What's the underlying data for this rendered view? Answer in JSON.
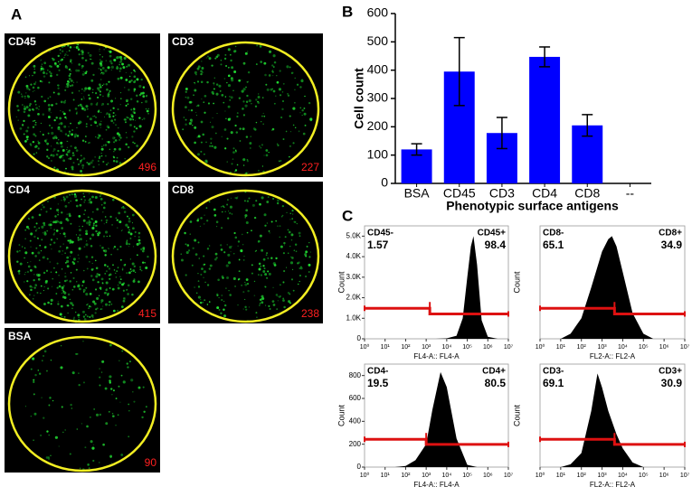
{
  "panel_labels": [
    "A",
    "B",
    "C"
  ],
  "images": [
    {
      "label": "CD45",
      "count": 496
    },
    {
      "label": "CD3",
      "count": 227
    },
    {
      "label": "CD4",
      "count": 415
    },
    {
      "label": "CD8",
      "count": 238
    },
    {
      "label": "BSA",
      "count": 90
    }
  ],
  "chart_data": [
    {
      "type": "bar",
      "ylabel": "Cell count",
      "xlabel": "Phenotypic surface antigens",
      "categories": [
        "BSA",
        "CD45",
        "CD3",
        "CD4",
        "CD8",
        "--"
      ],
      "values": [
        120,
        395,
        178,
        447,
        205,
        null
      ],
      "errors": [
        20,
        120,
        55,
        35,
        38,
        null
      ],
      "color": "#0000ff",
      "ylim": [
        0,
        600
      ],
      "yticks": [
        0,
        100,
        200,
        300,
        400,
        500,
        600
      ]
    },
    {
      "type": "area",
      "xlabel": "FL4-A:: FL4-A",
      "ylabel": "Count",
      "log_x": true,
      "color": "#000000",
      "xlim": [
        1,
        10000000
      ],
      "xticks": [
        {
          "value": 1,
          "label": "10⁰"
        },
        {
          "value": 10,
          "label": "10¹"
        },
        {
          "value": 100,
          "label": "10²"
        },
        {
          "value": 1000,
          "label": "10³"
        },
        {
          "value": 10000,
          "label": "10⁴"
        },
        {
          "value": 100000,
          "label": "10⁵"
        },
        {
          "value": 1000000,
          "label": "10⁶"
        },
        {
          "value": 10000000,
          "label": "10⁷"
        }
      ],
      "ylim": [
        0,
        5500
      ],
      "yticks": [
        0,
        {
          "value": 1000,
          "label": "1.0K"
        },
        {
          "value": 2000,
          "label": "2.0K"
        },
        {
          "value": 3000,
          "label": "3.0K"
        },
        {
          "value": 4000,
          "label": "4.0K"
        },
        {
          "value": 5000,
          "label": "5.0K"
        }
      ],
      "x": [
        3000,
        10000,
        30000,
        60000,
        100000,
        150000,
        200000,
        300000,
        500000,
        1000000,
        3000000
      ],
      "values": [
        0,
        20,
        150,
        1000,
        3000,
        4500,
        5000,
        3600,
        900,
        100,
        0
      ],
      "gate_x": 1500,
      "gate_color": "#dd1111",
      "gates": [
        {
          "name": "CD45-",
          "value": 1.57
        },
        {
          "name": "CD45+",
          "value": 98.4
        }
      ]
    },
    {
      "type": "area",
      "xlabel": "FL2-A:: FL2-A",
      "ylabel": "Count",
      "log_x": true,
      "color": "#000000",
      "xlim": [
        1,
        10000000
      ],
      "xticks": [
        {
          "value": 1,
          "label": "10⁰"
        },
        {
          "value": 10,
          "label": "10¹"
        },
        {
          "value": 100,
          "label": "10²"
        },
        {
          "value": 1000,
          "label": "10³"
        },
        {
          "value": 10000,
          "label": "10⁴"
        },
        {
          "value": 100000,
          "label": "10⁵"
        },
        {
          "value": 1000000,
          "label": "10⁶"
        },
        {
          "value": 10000000,
          "label": "10⁷"
        }
      ],
      "ylim": [
        0,
        110
      ],
      "yticks": [],
      "x": [
        10,
        30,
        100,
        300,
        1000,
        2000,
        3000,
        5000,
        10000,
        30000,
        100000,
        300000
      ],
      "values": [
        0,
        5,
        20,
        50,
        85,
        97,
        100,
        90,
        65,
        25,
        5,
        0
      ],
      "gate_x": 4000,
      "gate_color": "#dd1111",
      "gates": [
        {
          "name": "CD8-",
          "value": 65.1
        },
        {
          "name": "CD8+",
          "value": 34.9
        }
      ]
    },
    {
      "type": "area",
      "xlabel": "FL4-A:: FL4-A",
      "ylabel": "Count",
      "log_x": true,
      "color": "#000000",
      "xlim": [
        1,
        10000000
      ],
      "xticks": [
        {
          "value": 1,
          "label": "10⁰"
        },
        {
          "value": 10,
          "label": "10¹"
        },
        {
          "value": 100,
          "label": "10²"
        },
        {
          "value": 1000,
          "label": "10³"
        },
        {
          "value": 10000,
          "label": "10⁴"
        },
        {
          "value": 100000,
          "label": "10⁵"
        },
        {
          "value": 1000000,
          "label": "10⁶"
        },
        {
          "value": 10000000,
          "label": "10⁷"
        }
      ],
      "ylim": [
        0,
        900
      ],
      "yticks": [
        0,
        200,
        400,
        600,
        800
      ],
      "x": [
        30,
        100,
        300,
        1000,
        2000,
        5000,
        10000,
        30000,
        100000,
        300000
      ],
      "values": [
        0,
        10,
        60,
        200,
        500,
        830,
        700,
        250,
        20,
        0
      ],
      "gate_x": 1000,
      "gate_color": "#dd1111",
      "gates": [
        {
          "name": "CD4-",
          "value": 19.5
        },
        {
          "name": "CD4+",
          "value": 80.5
        }
      ]
    },
    {
      "type": "area",
      "xlabel": "FL2-A:: FL2-A",
      "ylabel": "Count",
      "log_x": true,
      "color": "#000000",
      "xlim": [
        1,
        10000000
      ],
      "xticks": [
        {
          "value": 1,
          "label": "10⁰"
        },
        {
          "value": 10,
          "label": "10¹"
        },
        {
          "value": 100,
          "label": "10²"
        },
        {
          "value": 1000,
          "label": "10³"
        },
        {
          "value": 10000,
          "label": "10⁴"
        },
        {
          "value": 100000,
          "label": "10⁵"
        },
        {
          "value": 1000000,
          "label": "10⁶"
        },
        {
          "value": 10000000,
          "label": "10⁷"
        }
      ],
      "ylim": [
        0,
        110
      ],
      "yticks": [],
      "x": [
        10,
        30,
        100,
        300,
        600,
        1000,
        2000,
        5000,
        10000,
        30000,
        100000
      ],
      "values": [
        0,
        3,
        15,
        60,
        100,
        85,
        60,
        35,
        20,
        5,
        0
      ],
      "gate_x": 4000,
      "gate_color": "#dd1111",
      "gates": [
        {
          "name": "CD3-",
          "value": 69.1
        },
        {
          "name": "CD3+",
          "value": 30.9
        }
      ]
    }
  ]
}
